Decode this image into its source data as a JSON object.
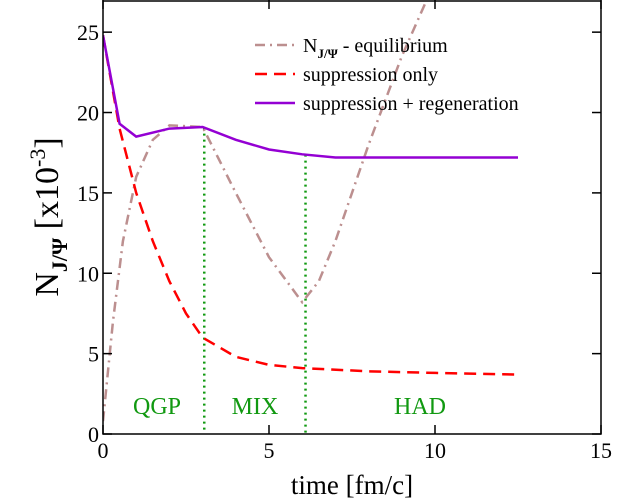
{
  "chart_data": {
    "type": "line",
    "xlabel": "time [fm/c]",
    "ylabel": {
      "main": "N",
      "sub": "J/Ψ",
      "mid": " [x10",
      "sup": "-3",
      "end": "]"
    },
    "legend_first": {
      "main": "N",
      "sub": "J/Ψ"
    },
    "xlim": [
      0,
      15
    ],
    "ylim": [
      0,
      27
    ],
    "xticks": [
      0,
      5,
      10,
      15
    ],
    "yticks": [
      0,
      5,
      10,
      15,
      20,
      25
    ],
    "phase_boundaries": [
      3.05,
      6.1
    ],
    "phase_color": "#119911",
    "annotations": [
      "QGP",
      "MIX",
      "HAD"
    ],
    "series": [
      {
        "name": " - equilibrium",
        "color": "#bc8f8f",
        "dash": "dashdot",
        "x": [
          0,
          0.3,
          0.6,
          1,
          1.5,
          2,
          3,
          4,
          5,
          6,
          6.5,
          7,
          8,
          9,
          9.75
        ],
        "values": [
          0.8,
          7,
          12,
          16,
          18.3,
          19.2,
          19.1,
          15,
          11,
          8.2,
          9.5,
          12,
          18,
          23.5,
          27
        ]
      },
      {
        "name": "suppression only",
        "color": "#ff0000",
        "dash": "dash",
        "x": [
          0,
          0.5,
          1,
          1.5,
          2,
          2.5,
          3,
          4,
          5,
          6,
          8,
          10,
          12.5
        ],
        "values": [
          24.8,
          19,
          15,
          12,
          9.5,
          7.5,
          6,
          4.8,
          4.3,
          4.1,
          3.9,
          3.8,
          3.7
        ]
      },
      {
        "name": "suppression + regeneration",
        "color": "#9400d3",
        "dash": "solid",
        "x": [
          0,
          0.5,
          1,
          2,
          3,
          4,
          5,
          6,
          7,
          8,
          10,
          12.5
        ],
        "values": [
          24.8,
          19.3,
          18.5,
          19,
          19.1,
          18.3,
          17.7,
          17.4,
          17.2,
          17.2,
          17.2,
          17.2
        ]
      }
    ]
  }
}
